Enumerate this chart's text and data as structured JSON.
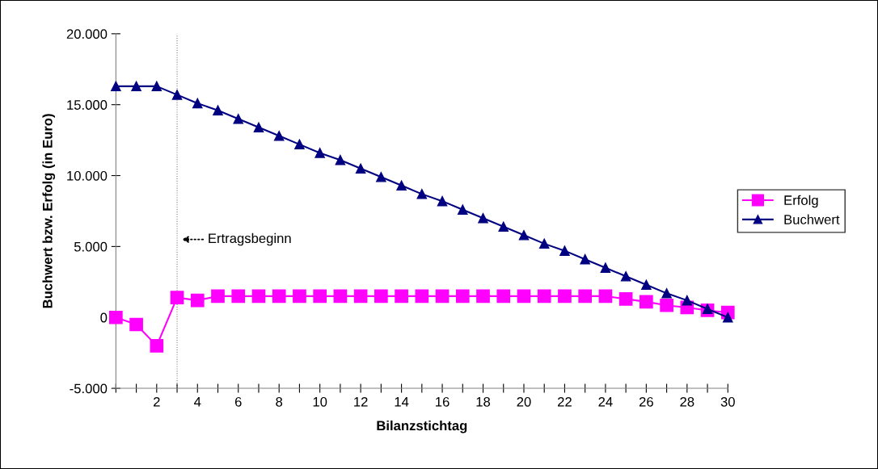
{
  "chart_data": {
    "type": "line",
    "xlabel": "Bilanzstichtag",
    "ylabel": "Buchwert bzw. Erfolg (in Euro)",
    "x": [
      0,
      1,
      2,
      3,
      4,
      5,
      6,
      7,
      8,
      9,
      10,
      11,
      12,
      13,
      14,
      15,
      16,
      17,
      18,
      19,
      20,
      21,
      22,
      23,
      24,
      25,
      26,
      27,
      28,
      29,
      30
    ],
    "series": [
      {
        "name": "Erfolg",
        "color": "#ff00ff",
        "marker": "square",
        "values": [
          0,
          -500,
          -2000,
          1400,
          1200,
          1500,
          1500,
          1500,
          1500,
          1500,
          1500,
          1500,
          1500,
          1500,
          1500,
          1500,
          1500,
          1500,
          1500,
          1500,
          1500,
          1500,
          1500,
          1500,
          1500,
          1300,
          1100,
          850,
          700,
          500,
          350
        ]
      },
      {
        "name": "Buchwert",
        "color": "#000080",
        "marker": "triangle",
        "values": [
          16300,
          16300,
          16300,
          15700,
          15100,
          14600,
          14000,
          13400,
          12800,
          12200,
          11600,
          11100,
          10500,
          9900,
          9300,
          8700,
          8200,
          7600,
          7000,
          6400,
          5800,
          5200,
          4700,
          4100,
          3500,
          2900,
          2300,
          1700,
          1200,
          600,
          0
        ]
      }
    ],
    "xlim": [
      0,
      30
    ],
    "xticks": [
      {
        "value": 0,
        "label": null
      },
      {
        "value": 1,
        "label": null
      },
      2,
      {
        "value": 3,
        "label": null
      },
      4,
      {
        "value": 5,
        "label": null
      },
      6,
      {
        "value": 7,
        "label": null
      },
      8,
      {
        "value": 9,
        "label": null
      },
      10,
      {
        "value": 11,
        "label": null
      },
      12,
      {
        "value": 13,
        "label": null
      },
      14,
      {
        "value": 15,
        "label": null
      },
      16,
      {
        "value": 17,
        "label": null
      },
      18,
      {
        "value": 19,
        "label": null
      },
      20,
      {
        "value": 21,
        "label": null
      },
      22,
      {
        "value": 23,
        "label": null
      },
      24,
      {
        "value": 25,
        "label": null
      },
      26,
      {
        "value": 27,
        "label": null
      },
      28,
      {
        "value": 29,
        "label": null
      },
      30
    ],
    "ylim": [
      -5000,
      20000
    ],
    "yticks": [
      {
        "value": -5000,
        "label": "-5.000"
      },
      {
        "value": 0,
        "label": "0"
      },
      {
        "value": 5000,
        "label": "5.000"
      },
      {
        "value": 10000,
        "label": "10.000"
      },
      {
        "value": 15000,
        "label": "15.000"
      },
      {
        "value": 20000,
        "label": "20.000"
      }
    ],
    "ref_lines": [
      {
        "axis": "x",
        "value": 3,
        "color": "#808080",
        "line_style": "dotted"
      }
    ],
    "annotations": [
      {
        "text": "Ertragsbeginn",
        "x": 3,
        "y": 5500
      }
    ],
    "grid": false,
    "legend": "right",
    "line_style": "solid"
  }
}
